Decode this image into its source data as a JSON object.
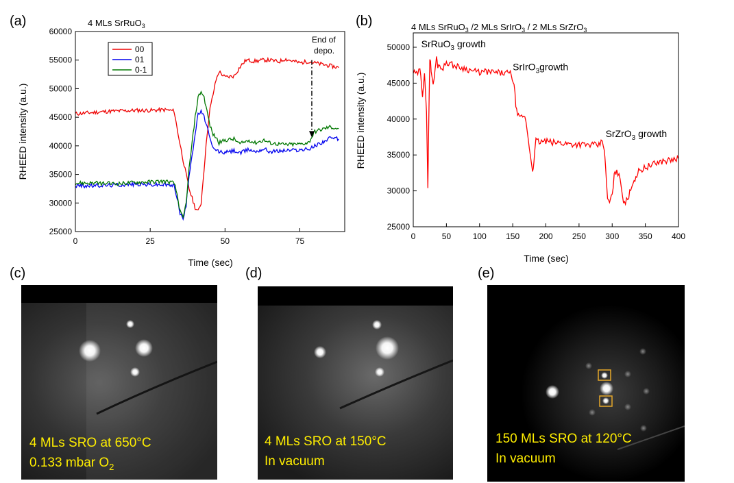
{
  "panels": {
    "a": {
      "letter": "(a)"
    },
    "b": {
      "letter": "(b)"
    },
    "c": {
      "letter": "(c)",
      "caption_line1": "4 MLs SRO at 650°C",
      "caption_line2_prefix": "0.133 mbar O",
      "caption_line2_sub": "2"
    },
    "d": {
      "letter": "(d)",
      "caption_line1": "4 MLs SRO at 150°C",
      "caption_line2": "In vacuum"
    },
    "e": {
      "letter": "(e)",
      "caption_line1": "150 MLs SRO at 120°C",
      "caption_line2": "In vacuum"
    }
  },
  "chart_data": [
    {
      "type": "line",
      "title": "4 MLs SrRuO",
      "title_sub": "3",
      "xlabel": "Time (sec)",
      "ylabel": "RHEED intensity (a.u.)",
      "xlim": [
        0,
        90
      ],
      "ylim": [
        25000,
        60000
      ],
      "xticks": [
        0,
        25,
        50,
        75
      ],
      "yticks": [
        25000,
        30000,
        35000,
        40000,
        45000,
        50000,
        55000,
        60000
      ],
      "legend": {
        "position": "top-left"
      },
      "annotation": {
        "line1": "End of",
        "line2": "depo.",
        "x": 79,
        "y_from": 55000,
        "y_to": 41500
      },
      "series": [
        {
          "name": "00",
          "color": "#ee0000",
          "x": [
            0,
            5,
            10,
            15,
            20,
            25,
            30,
            33,
            34,
            36,
            38,
            40,
            41,
            42,
            43,
            44,
            45,
            47,
            48,
            50,
            53,
            55,
            57,
            60,
            63,
            65,
            68,
            70,
            75,
            78,
            80,
            85,
            88
          ],
          "y": [
            45600,
            45800,
            46000,
            46100,
            46200,
            46200,
            46300,
            46100,
            43000,
            37500,
            32500,
            29200,
            28500,
            30000,
            36000,
            42000,
            46500,
            51500,
            53000,
            52000,
            52200,
            53800,
            55000,
            54800,
            55000,
            55000,
            54700,
            55200,
            54500,
            54800,
            54500,
            54000,
            53700
          ]
        },
        {
          "name": "01",
          "color": "#0000ee",
          "x": [
            0,
            5,
            10,
            15,
            20,
            25,
            30,
            33,
            34,
            35,
            36,
            37,
            38,
            40,
            41,
            42,
            43,
            44,
            45,
            46,
            48,
            50,
            53,
            55,
            58,
            60,
            63,
            65,
            70,
            75,
            78,
            80,
            85,
            88
          ],
          "y": [
            33000,
            33000,
            33100,
            33200,
            33300,
            33200,
            33200,
            33000,
            31000,
            28200,
            27200,
            29500,
            35000,
            42000,
            45500,
            46000,
            45000,
            43500,
            41000,
            39500,
            39000,
            38800,
            39200,
            38700,
            39400,
            39000,
            39500,
            39000,
            39200,
            39300,
            39400,
            40000,
            41300,
            41200
          ]
        },
        {
          "name": "0-1",
          "color": "#007700",
          "x": [
            0,
            5,
            10,
            15,
            20,
            25,
            30,
            33,
            34,
            35,
            36,
            37,
            38,
            40,
            41,
            42,
            43,
            44,
            45,
            46,
            47,
            48,
            50,
            53,
            55,
            58,
            60,
            63,
            65,
            70,
            75,
            78,
            80,
            85,
            88
          ],
          "y": [
            33500,
            33500,
            33400,
            33400,
            33600,
            33700,
            33800,
            33500,
            31500,
            28500,
            27300,
            30000,
            36000,
            45000,
            48500,
            49500,
            48500,
            46000,
            43500,
            42000,
            41500,
            40500,
            41000,
            41200,
            40300,
            41000,
            40500,
            41000,
            40500,
            40200,
            40300,
            40600,
            42500,
            43300,
            43000
          ]
        }
      ]
    },
    {
      "type": "line",
      "title_parts": [
        "4 MLs SrRuO",
        "3",
        " /2 MLs SrIrO",
        "3",
        " / 2 MLs SrZrO",
        "3"
      ],
      "xlabel": "Time (sec)",
      "ylabel": "RHEED intensity (a.u.)",
      "xlim": [
        0,
        400
      ],
      "ylim": [
        25000,
        52000
      ],
      "xticks": [
        0,
        50,
        100,
        150,
        200,
        250,
        300,
        350,
        400
      ],
      "yticks": [
        25000,
        30000,
        35000,
        40000,
        45000,
        50000
      ],
      "annotations": [
        {
          "text": "SrRuO",
          "sub": "3",
          "rest": " growth",
          "x": 12,
          "y": 50000
        },
        {
          "text": "SrIrO",
          "sub": "3",
          "rest": "growth",
          "x": 150,
          "y": 46800
        },
        {
          "text": "SrZrO",
          "sub": "3",
          "rest": " growth",
          "x": 290,
          "y": 37500
        }
      ],
      "series": [
        {
          "name": "SrRuO3/SrIrO3/SrZrO3",
          "color": "#ff0000",
          "x": [
            0,
            5,
            10,
            14,
            17,
            20,
            22,
            23,
            25,
            27,
            30,
            33,
            35,
            37,
            40,
            45,
            50,
            60,
            70,
            80,
            90,
            100,
            110,
            120,
            130,
            140,
            148,
            152,
            156,
            160,
            165,
            170,
            175,
            180,
            182,
            185,
            190,
            200,
            210,
            220,
            230,
            240,
            250,
            260,
            270,
            280,
            285,
            288,
            290,
            293,
            296,
            300,
            303,
            307,
            312,
            317,
            320,
            325,
            328,
            333,
            337,
            340,
            345,
            350,
            360,
            370,
            380,
            390,
            400
          ],
          "y": [
            46500,
            46200,
            46800,
            43500,
            46700,
            41000,
            30000,
            38000,
            48500,
            47000,
            44500,
            47000,
            48500,
            47500,
            47500,
            47000,
            48000,
            47500,
            47200,
            47000,
            46700,
            46500,
            46600,
            46500,
            46400,
            46400,
            46300,
            44500,
            41000,
            40000,
            40500,
            39800,
            36000,
            33000,
            34000,
            37000,
            36800,
            36900,
            36700,
            36700,
            36600,
            36500,
            36500,
            36400,
            36400,
            36300,
            37000,
            36000,
            33000,
            29000,
            28300,
            29500,
            32000,
            33000,
            31500,
            28800,
            28400,
            29000,
            30500,
            31500,
            32200,
            32700,
            33000,
            33300,
            33600,
            34000,
            34200,
            34300,
            34500
          ]
        }
      ]
    }
  ]
}
